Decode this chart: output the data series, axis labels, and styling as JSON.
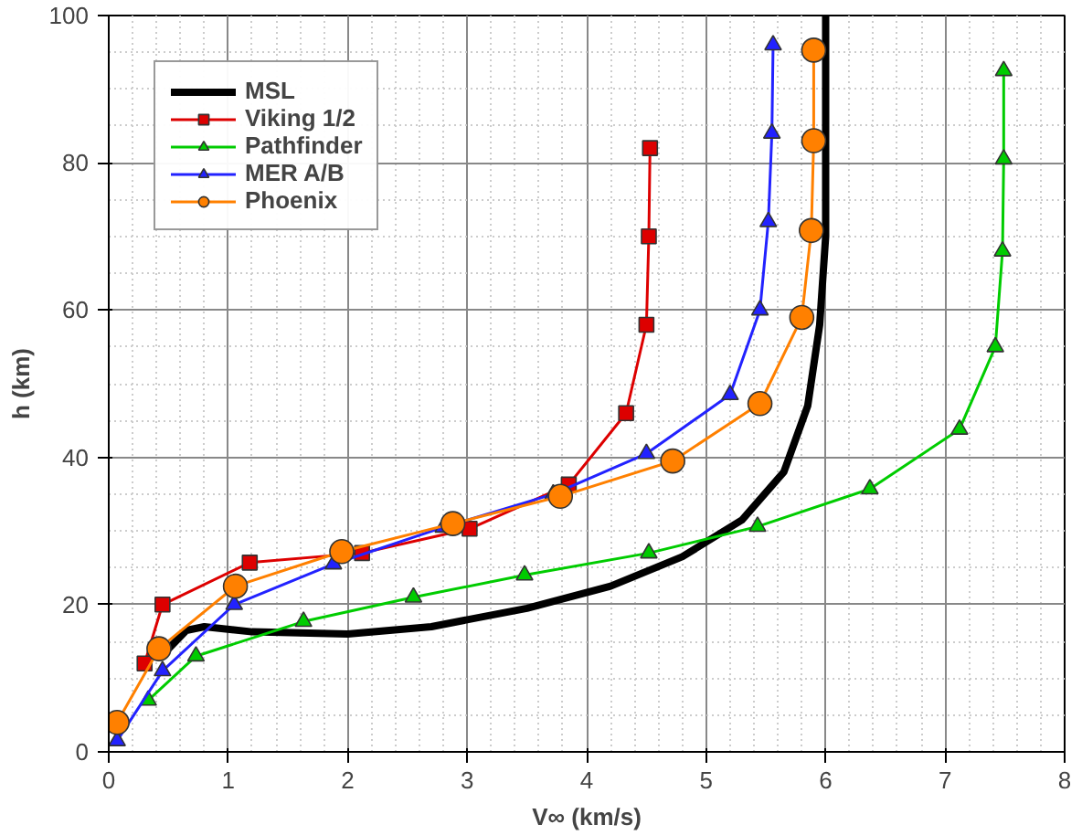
{
  "chart_data": {
    "type": "line",
    "xlabel": "V∞ (km/s)",
    "ylabel": "h (km)",
    "xlim": [
      0,
      8
    ],
    "ylim": [
      0,
      100
    ],
    "xticks": [
      0,
      1,
      2,
      3,
      4,
      5,
      6,
      7,
      8
    ],
    "yticks": [
      0,
      20,
      40,
      60,
      80,
      100
    ],
    "grid": true,
    "legend": "top left",
    "series": [
      {
        "name": "MSL",
        "color": "#000000",
        "marker": "none",
        "x": [
          0.45,
          0.5,
          0.65,
          0.8,
          1.2,
          2.0,
          2.7,
          3.5,
          4.2,
          4.8,
          5.3,
          5.65,
          5.85,
          5.95,
          6.0,
          6.0
        ],
        "values": [
          13,
          14,
          16.5,
          17,
          16.3,
          16,
          17,
          19.5,
          22.5,
          26.5,
          31.5,
          38,
          47,
          58,
          70,
          100
        ]
      },
      {
        "name": "Viking 1/2",
        "color": "#dd0000",
        "marker": "square",
        "x": [
          0.3,
          0.45,
          1.18,
          2.12,
          3.02,
          3.85,
          4.33,
          4.5,
          4.52,
          4.53
        ],
        "values": [
          12,
          20,
          25.7,
          27,
          30.3,
          36.3,
          46,
          58,
          70,
          82
        ]
      },
      {
        "name": "Pathfinder",
        "color": "#00cc00",
        "marker": "triangle",
        "x": [
          0.33,
          0.73,
          1.63,
          2.55,
          3.48,
          4.52,
          5.43,
          6.37,
          7.12,
          7.42,
          7.48,
          7.49,
          7.49
        ],
        "values": [
          7,
          13,
          17.7,
          21,
          24,
          27,
          30.6,
          35.7,
          43.8,
          55,
          68,
          80.5,
          92.5
        ]
      },
      {
        "name": "MER A/B",
        "color": "#2222ff",
        "marker": "triangle",
        "x": [
          0.07,
          0.45,
          1.05,
          1.88,
          2.8,
          3.72,
          4.5,
          5.2,
          5.45,
          5.52,
          5.55,
          5.56
        ],
        "values": [
          1.5,
          11,
          20,
          25.5,
          30.5,
          35,
          40.5,
          48.5,
          60,
          72,
          84,
          96
        ]
      },
      {
        "name": "Phoenix",
        "color": "#ff8000",
        "marker": "circle",
        "x": [
          0.07,
          0.42,
          1.06,
          1.95,
          2.88,
          3.78,
          4.72,
          5.45,
          5.8,
          5.88,
          5.9,
          5.9
        ],
        "values": [
          4,
          14,
          22.5,
          27.2,
          31,
          34.7,
          39.5,
          47.3,
          59,
          70.8,
          83,
          95.3
        ]
      }
    ]
  }
}
